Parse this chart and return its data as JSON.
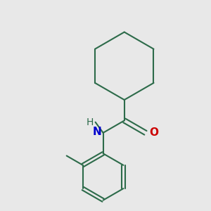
{
  "bg_color": "#e8e8e8",
  "bond_color": "#2d6b4a",
  "N_color": "#0000cc",
  "O_color": "#cc0000",
  "line_width": 1.5,
  "figsize": [
    3.0,
    3.0
  ],
  "dpi": 100,
  "xlim": [
    0.0,
    5.0
  ],
  "ylim": [
    0.0,
    5.5
  ]
}
